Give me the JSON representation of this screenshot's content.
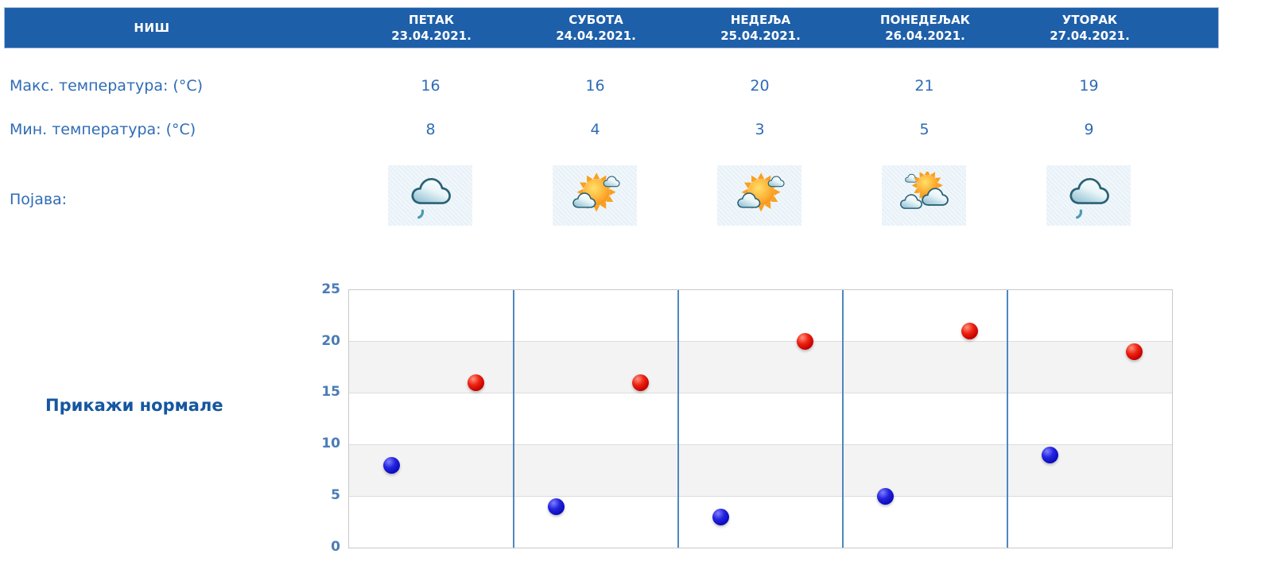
{
  "header": {
    "city": "НИШ"
  },
  "rows": {
    "max_label": "Макс. температура: (°C)",
    "min_label": "Мин. температура: (°C)",
    "phenomenon_label": "Појава:"
  },
  "days": [
    {
      "name": "ПЕТАК",
      "date": "23.04.2021.",
      "max": "16",
      "min": "8",
      "icon": "cloud-drizzle-icon"
    },
    {
      "name": "СУБОТА",
      "date": "24.04.2021.",
      "max": "16",
      "min": "4",
      "icon": "sun-clouds-icon"
    },
    {
      "name": "НЕДЕЉА",
      "date": "25.04.2021.",
      "max": "20",
      "min": "3",
      "icon": "sun-clouds-icon"
    },
    {
      "name": "ПОНЕДЕЉАК",
      "date": "26.04.2021.",
      "max": "21",
      "min": "5",
      "icon": "clouds-sun-icon"
    },
    {
      "name": "УТОРАК",
      "date": "27.04.2021.",
      "max": "19",
      "min": "9",
      "icon": "cloud-drizzle-icon"
    }
  ],
  "normals_link": "Прикажи нормале",
  "colors": {
    "header_bg": "#1e5fa9",
    "text_blue": "#2e6cb5",
    "max_dot": "#cc0000",
    "min_dot": "#1010cc",
    "separator": "#4e87c0"
  },
  "chart_data": {
    "type": "scatter",
    "categories": [
      "23.04.2021.",
      "24.04.2021.",
      "25.04.2021.",
      "26.04.2021.",
      "27.04.2021."
    ],
    "series": [
      {
        "name": "Макс. температура (°C)",
        "color": "#cc0000",
        "key": "max",
        "x_frac": 0.77,
        "values": [
          16,
          16,
          20,
          21,
          19
        ]
      },
      {
        "name": "Мин. температура (°C)",
        "color": "#1010cc",
        "key": "min",
        "x_frac": 0.26,
        "values": [
          8,
          4,
          3,
          5,
          9
        ]
      }
    ],
    "title": "",
    "xlabel": "",
    "ylabel": "",
    "ylim": [
      0,
      25
    ],
    "yticks": [
      "25",
      "20",
      "15",
      "10",
      "5",
      "0"
    ],
    "grid": true,
    "legend": "none",
    "bands_gray": [
      [
        15,
        20
      ],
      [
        5,
        10
      ]
    ]
  }
}
